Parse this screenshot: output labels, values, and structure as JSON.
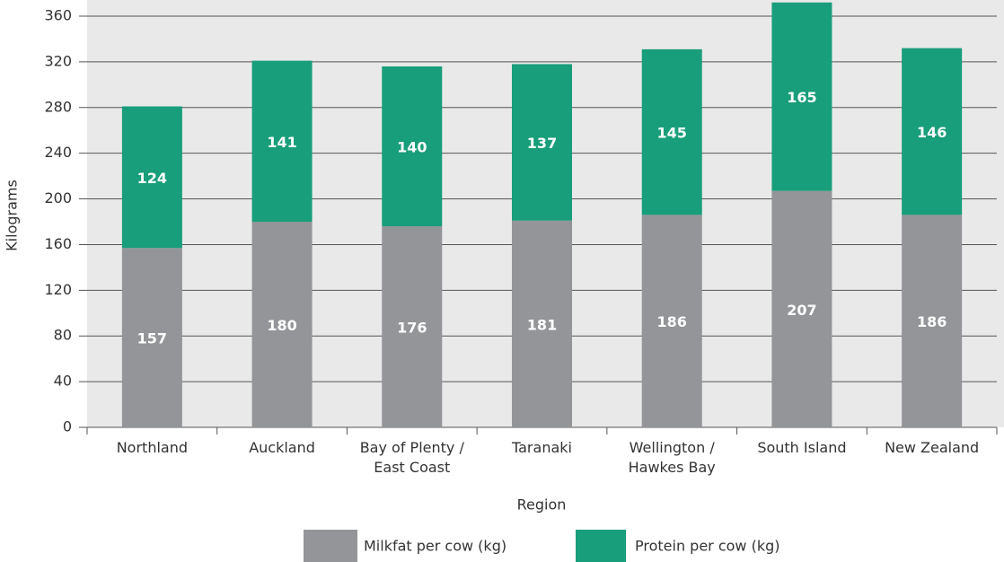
{
  "chart_data": {
    "type": "stacked_bar",
    "categories": [
      "Northland",
      "Auckland",
      "Bay of Plenty /\nEast Coast",
      "Taranaki",
      "Wellington /\nHawkes Bay",
      "South Island",
      "New Zealand"
    ],
    "series": [
      {
        "name": "Milkfat per cow (kg)",
        "color": "#939598",
        "values": [
          157,
          180,
          176,
          181,
          186,
          207,
          186
        ]
      },
      {
        "name": "Protein per cow (kg)",
        "color": "#189e7a",
        "values": [
          124,
          141,
          140,
          137,
          145,
          165,
          146
        ]
      }
    ],
    "x_label": "Region",
    "y_label": "Kilograms",
    "ylim": [
      0,
      360
    ],
    "yticks": [
      0,
      40,
      80,
      120,
      160,
      200,
      240,
      280,
      320,
      360
    ],
    "grid": true
  }
}
